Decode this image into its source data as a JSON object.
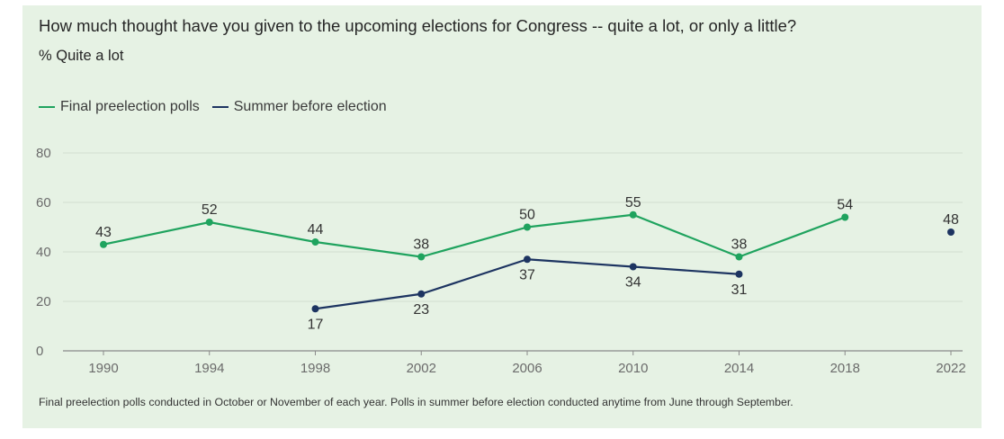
{
  "chart_data": {
    "type": "line",
    "title": "How much thought have you given to the upcoming elections for Congress -- quite a lot, or only a little?",
    "subtitle": "% Quite a lot",
    "x": [
      1990,
      1994,
      1998,
      2002,
      2006,
      2010,
      2014,
      2018,
      2022
    ],
    "x_tick_labels": [
      "1990",
      "1994",
      "1998",
      "2002",
      "2006",
      "2010",
      "2014",
      "2018",
      "2022"
    ],
    "y_ticks": [
      0,
      20,
      40,
      60,
      80
    ],
    "y_tick_labels": [
      "0",
      "20",
      "40",
      "60",
      "80"
    ],
    "ylim": [
      0,
      80
    ],
    "grid": true,
    "legend_position": "top-left",
    "series": [
      {
        "name": "Final preelection polls",
        "color": "#1fa35e",
        "label_position": "above",
        "points": [
          [
            1990,
            43
          ],
          [
            1994,
            52
          ],
          [
            1998,
            44
          ],
          [
            2002,
            38
          ],
          [
            2006,
            50
          ],
          [
            2010,
            55
          ],
          [
            2014,
            38
          ],
          [
            2018,
            54
          ]
        ]
      },
      {
        "name": "Summer before election",
        "color": "#1d3461",
        "label_position": "below",
        "points": [
          [
            1998,
            17
          ],
          [
            2002,
            23
          ],
          [
            2006,
            37
          ],
          [
            2010,
            34
          ],
          [
            2014,
            31
          ]
        ]
      },
      {
        "name": "",
        "color": "#1d3461",
        "label_position": "above",
        "points": [
          [
            2022,
            48
          ]
        ]
      }
    ],
    "footnote": "Final preelection polls conducted in October or November of each year. Polls in summer before election conducted anytime from June through September."
  }
}
